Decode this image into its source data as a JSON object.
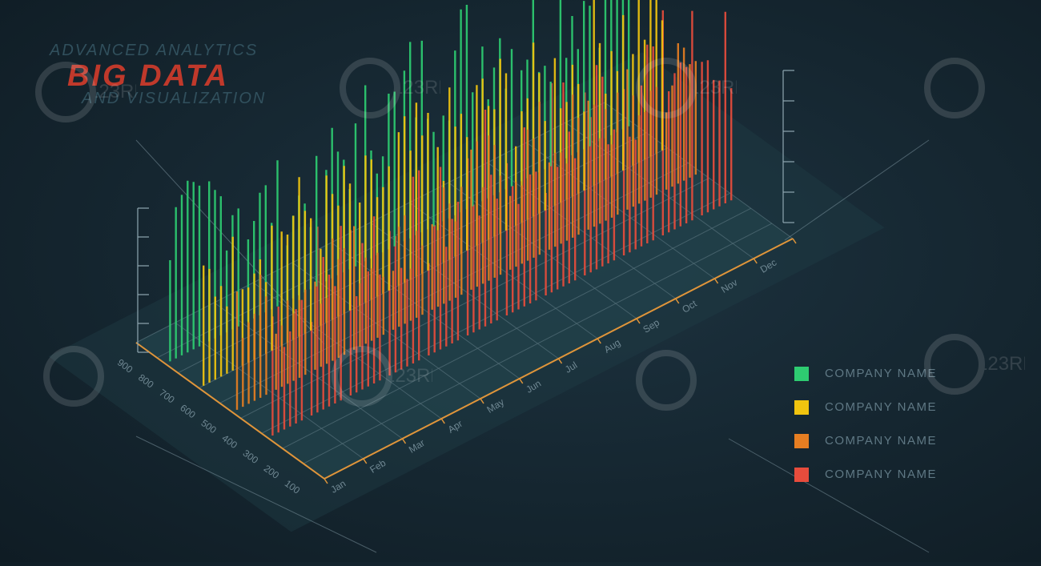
{
  "header": {
    "line1": "ADVANCED ANALYTICS",
    "line2": "BIG DATA",
    "line3": "AND VISUALIZATION"
  },
  "watermark": {
    "text": "123RF"
  },
  "colors": {
    "background": "#152630",
    "plane": "#1e3b44",
    "axis": "#e0953a",
    "grid": "#56707b",
    "green": "#2ecc71",
    "yellow": "#f1c40f",
    "orange": "#e67e22",
    "red": "#e74c3c"
  },
  "legend": {
    "items": [
      {
        "label": "COMPANY NAME",
        "color": "#2ecc71"
      },
      {
        "label": "COMPANY NAME",
        "color": "#f1c40f"
      },
      {
        "label": "COMPANY NAME",
        "color": "#e67e22"
      },
      {
        "label": "COMPANY NAME",
        "color": "#e74c3c"
      }
    ]
  },
  "chart_data": {
    "type": "bar",
    "projection": "isometric 3D",
    "categories": [
      "Jan",
      "Feb",
      "Mar",
      "Apr",
      "May",
      "Jun",
      "Jul",
      "Aug",
      "Sep",
      "Oct",
      "Nov",
      "Dec"
    ],
    "depth_ticks": [
      "100",
      "200",
      "300",
      "400",
      "500",
      "600",
      "700",
      "800",
      "900"
    ],
    "series": [
      {
        "name": "COMPANY NAME",
        "color": "#2ecc71",
        "values": [
          560,
          600,
          480,
          420,
          520,
          600,
          680,
          720,
          700,
          640,
          680,
          700
        ]
      },
      {
        "name": "COMPANY NAME",
        "color": "#f1c40f",
        "values": [
          460,
          520,
          540,
          500,
          480,
          560,
          560,
          600,
          560,
          580,
          620,
          640
        ]
      },
      {
        "name": "COMPANY NAME",
        "color": "#e67e22",
        "values": [
          420,
          380,
          460,
          420,
          380,
          440,
          480,
          500,
          480,
          470,
          460,
          500
        ]
      },
      {
        "name": "COMPANY NAME",
        "color": "#e74c3c",
        "values": [
          540,
          640,
          660,
          620,
          600,
          700,
          660,
          700,
          760,
          780,
          740,
          720
        ]
      }
    ],
    "ylim": [
      0,
      1000
    ],
    "grid": true,
    "legend": "bottom-right"
  }
}
